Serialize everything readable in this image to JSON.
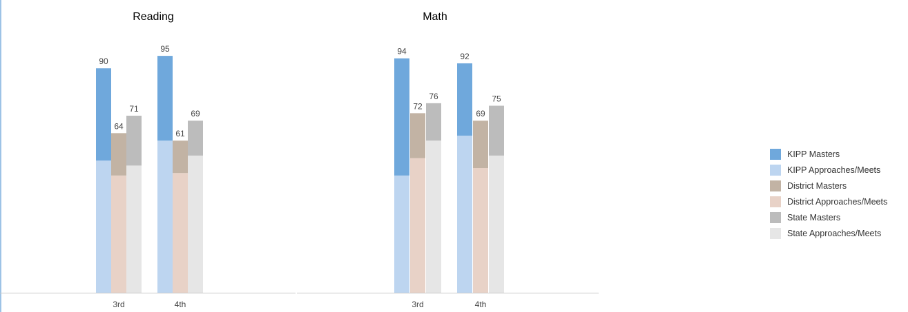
{
  "chart_data": [
    {
      "type": "bar",
      "title": "Reading",
      "categories": [
        "3rd",
        "4th"
      ],
      "ylim": [
        0,
        100
      ],
      "groups": [
        {
          "category": "3rd",
          "bars": [
            {
              "name": "KIPP",
              "total": 90,
              "approaches_meets": 53,
              "masters": 37
            },
            {
              "name": "District",
              "total": 64,
              "approaches_meets": 47,
              "masters": 17
            },
            {
              "name": "State",
              "total": 71,
              "approaches_meets": 51,
              "masters": 20
            }
          ]
        },
        {
          "category": "4th",
          "bars": [
            {
              "name": "KIPP",
              "total": 95,
              "approaches_meets": 61,
              "masters": 34
            },
            {
              "name": "District",
              "total": 61,
              "approaches_meets": 48,
              "masters": 13
            },
            {
              "name": "State",
              "total": 69,
              "approaches_meets": 55,
              "masters": 14
            }
          ]
        }
      ]
    },
    {
      "type": "bar",
      "title": "Math",
      "categories": [
        "3rd",
        "4th"
      ],
      "ylim": [
        0,
        100
      ],
      "groups": [
        {
          "category": "3rd",
          "bars": [
            {
              "name": "KIPP",
              "total": 94,
              "approaches_meets": 47,
              "masters": 47
            },
            {
              "name": "District",
              "total": 72,
              "approaches_meets": 54,
              "masters": 18
            },
            {
              "name": "State",
              "total": 76,
              "approaches_meets": 61,
              "masters": 15
            }
          ]
        },
        {
          "category": "4th",
          "bars": [
            {
              "name": "KIPP",
              "total": 92,
              "approaches_meets": 63,
              "masters": 29
            },
            {
              "name": "District",
              "total": 69,
              "approaches_meets": 50,
              "masters": 19
            },
            {
              "name": "State",
              "total": 75,
              "approaches_meets": 55,
              "masters": 20
            }
          ]
        }
      ]
    }
  ],
  "legend": [
    {
      "label": "KIPP Masters",
      "color": "#6fa8dc"
    },
    {
      "label": "KIPP Approaches/Meets",
      "color": "#bdd5f0"
    },
    {
      "label": "District Masters",
      "color": "#c2b3a4"
    },
    {
      "label": "District Approaches/Meets",
      "color": "#e8d2c7"
    },
    {
      "label": "State Masters",
      "color": "#bcbcbc"
    },
    {
      "label": "State Approaches/Meets",
      "color": "#e6e6e6"
    }
  ],
  "colors": {
    "KIPP": {
      "masters": "#6fa8dc",
      "approaches_meets": "#bdd5f0"
    },
    "District": {
      "masters": "#c2b3a4",
      "approaches_meets": "#e8d2c7"
    },
    "State": {
      "masters": "#bcbcbc",
      "approaches_meets": "#e6e6e6"
    }
  }
}
